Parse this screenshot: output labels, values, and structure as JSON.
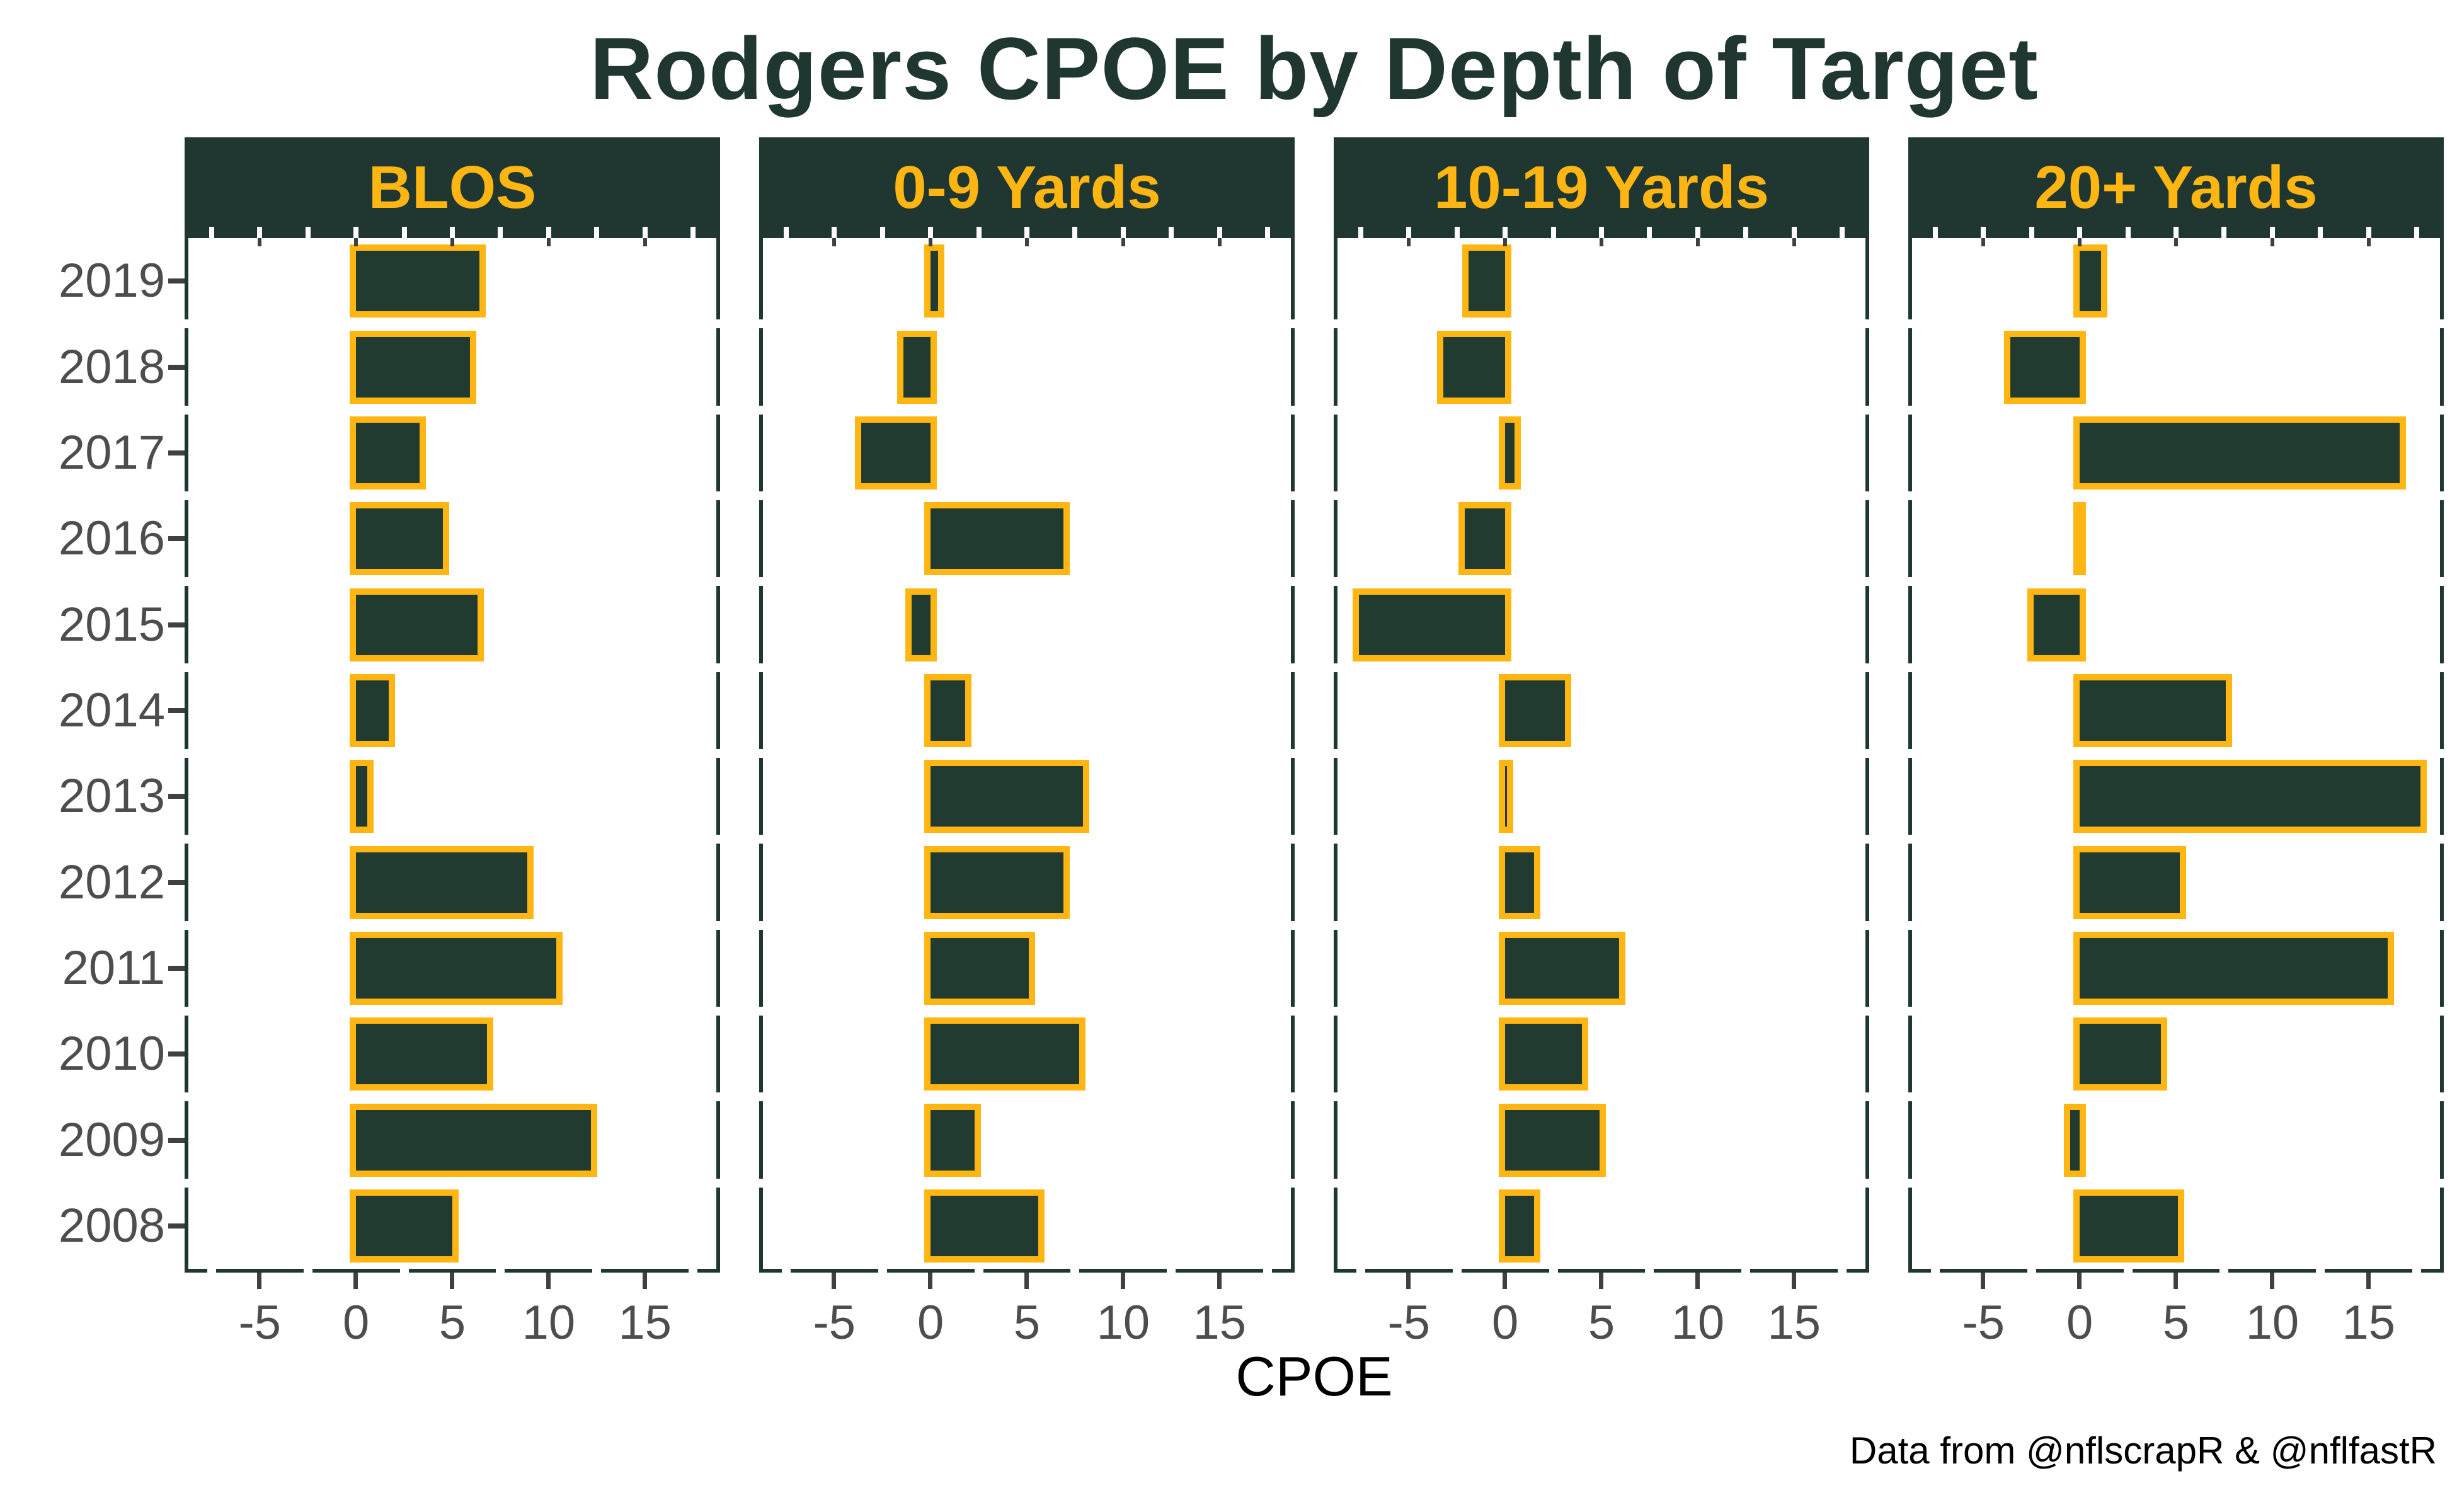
{
  "title": "Rodgers CPOE by Depth of Target",
  "caption": "Data from @nflscrapR & @nflfastR",
  "axis": {
    "xlabel": "CPOE",
    "x_tick_labels": [
      "-5",
      "0",
      "5",
      "10",
      "15"
    ]
  },
  "colors": {
    "dark_green": "#203731",
    "gold": "#ffb612",
    "bar_fill": "#223b31",
    "axis_text": "#4d4d4d",
    "background": "#ffffff"
  },
  "chart_data": {
    "type": "bar",
    "orientation": "horizontal",
    "title": "Rodgers CPOE by Depth of Target",
    "xlabel": "CPOE",
    "caption": "Data from @nflscrapR & @nflfastR",
    "grid": false,
    "legend": false,
    "categories": [
      "2019",
      "2018",
      "2017",
      "2016",
      "2015",
      "2014",
      "2013",
      "2012",
      "2011",
      "2010",
      "2009",
      "2008"
    ],
    "x_ticks": [
      -5,
      0,
      5,
      10,
      15
    ],
    "x_minor_ticks": [
      -7.5,
      -2.5,
      2.5,
      7.5,
      12.5,
      17.5
    ],
    "xlim": [
      -8.9,
      18.9
    ],
    "facets": [
      {
        "label": "BLOS",
        "values": [
          6.4,
          5.9,
          3.3,
          4.5,
          6.3,
          1.7,
          0.6,
          8.9,
          10.4,
          6.8,
          12.2,
          5.0
        ]
      },
      {
        "label": "0-9 Yards",
        "values": [
          0.4,
          -1.4,
          -3.6,
          6.9,
          -1.0,
          1.8,
          7.9,
          6.9,
          5.1,
          7.7,
          2.3,
          5.6
        ]
      },
      {
        "label": "10-19 Yards",
        "values": [
          -1.9,
          -3.2,
          0.5,
          -2.1,
          -7.6,
          3.1,
          0.1,
          1.5,
          5.9,
          4.0,
          4.9,
          1.5
        ]
      },
      {
        "label": "20+ Yards",
        "values": [
          1.1,
          -3.6,
          16.6,
          0.0,
          -2.4,
          7.6,
          17.7,
          5.2,
          16.0,
          4.2,
          -0.5,
          5.1
        ]
      }
    ],
    "bar_style": {
      "fill": "#223b31",
      "border": "#ffb612",
      "border_width_px": 10
    }
  }
}
